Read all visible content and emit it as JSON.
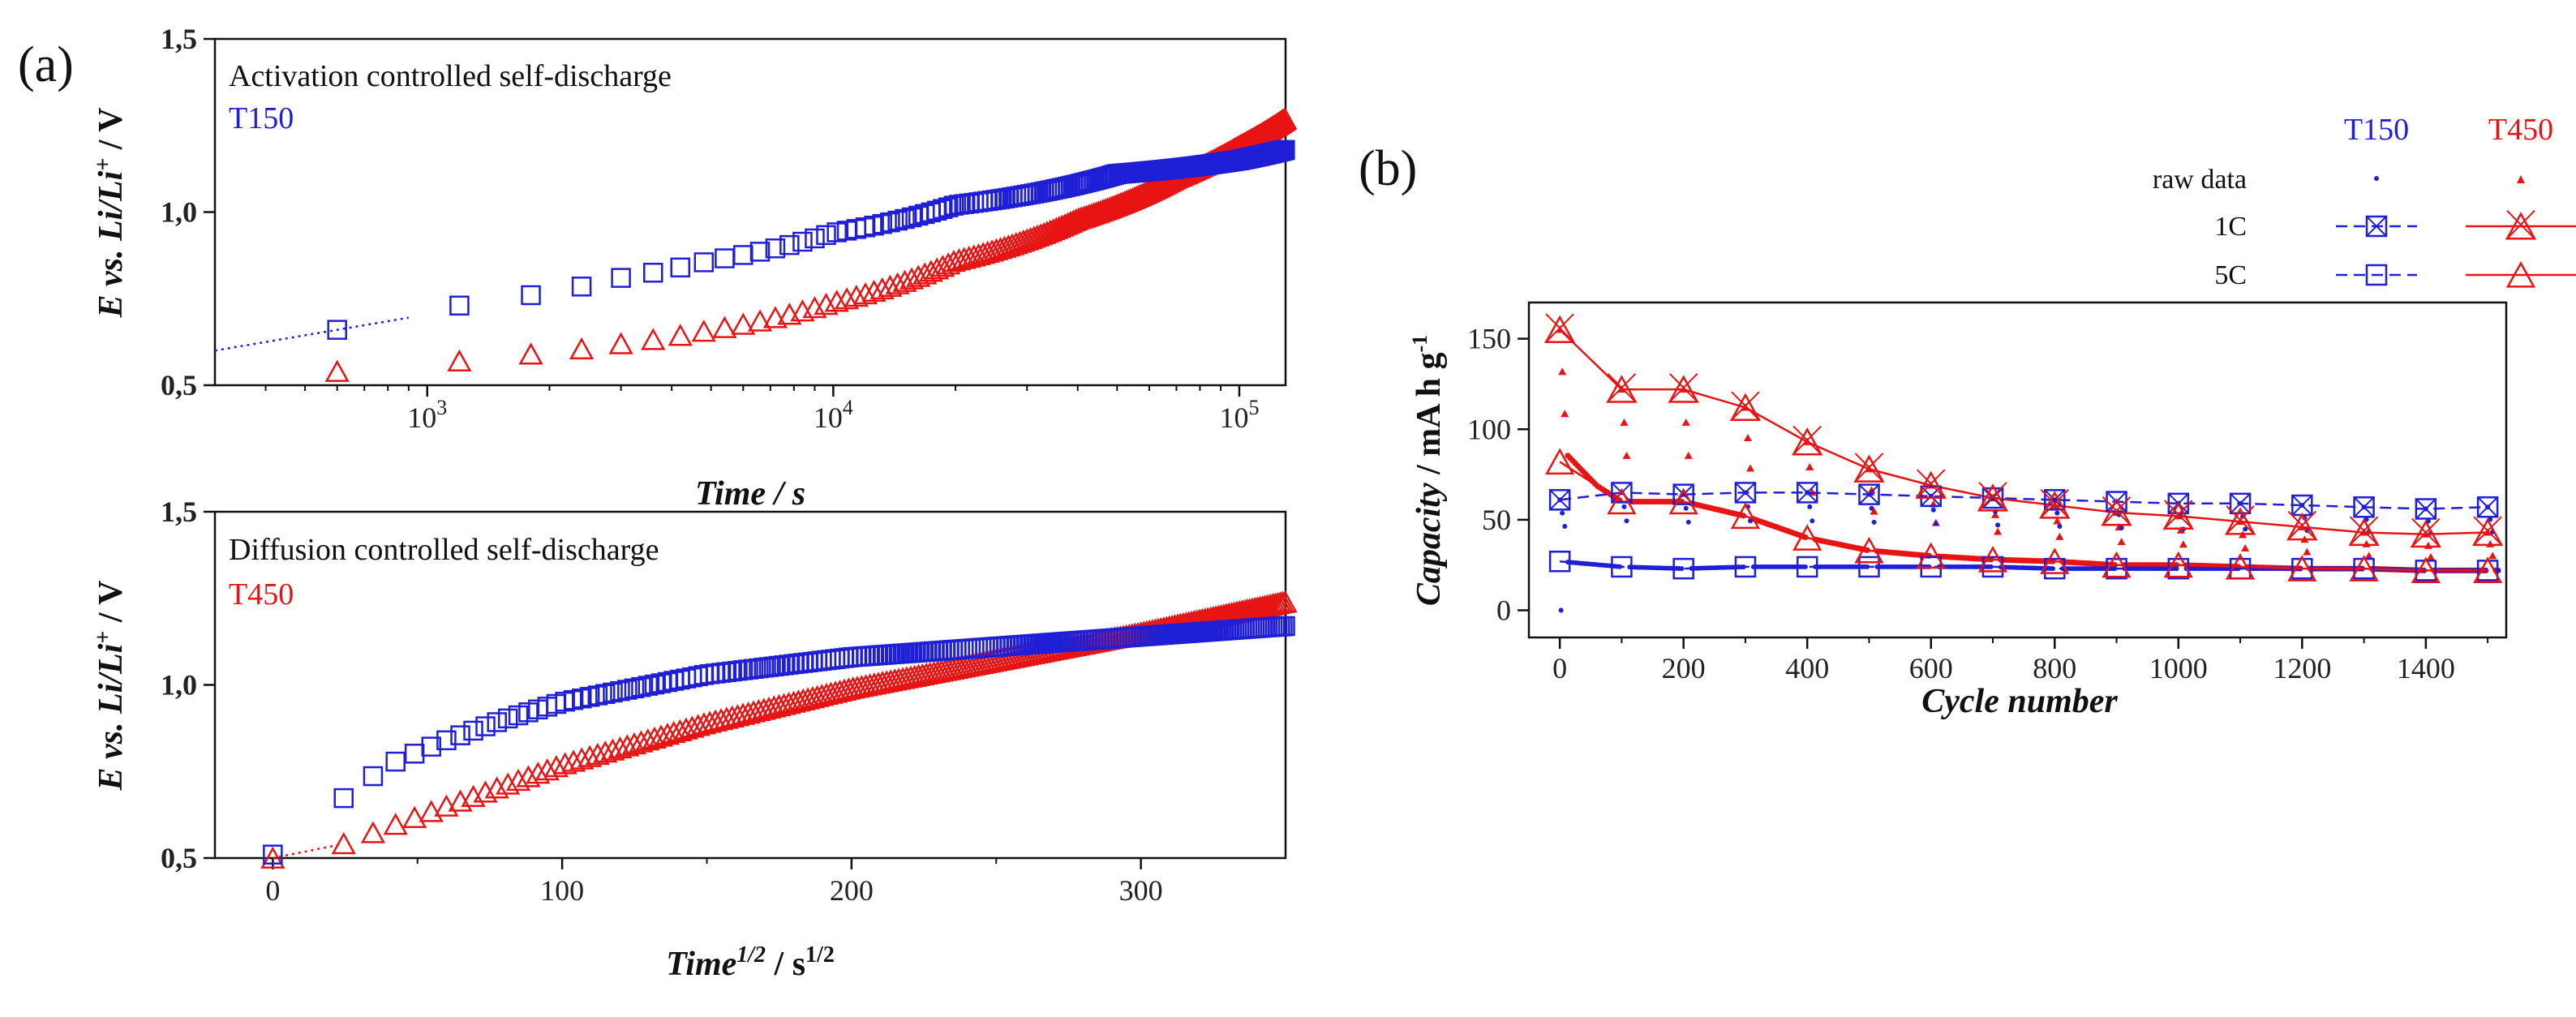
{
  "colors": {
    "T150": "#1f1fd6",
    "T450": "#e81414",
    "axis": "#111111"
  },
  "panel_labels": {
    "a": "(a)",
    "b": "(b)"
  },
  "chart_data": [
    {
      "type": "scatter",
      "panel": "(a) top",
      "annotation_title": "Activation controlled self-discharge",
      "annotation_series": "T150",
      "xlabel": "Time / s",
      "ylabel": "E vs. Li/Li+ / V",
      "xscale": "log",
      "xlim": [
        300,
        130000
      ],
      "ylim": [
        0.5,
        1.5
      ],
      "x_ticks": [
        1000,
        10000,
        100000
      ],
      "x_tick_labels": [
        {
          "base": "10",
          "exp": "3"
        },
        {
          "base": "10",
          "exp": "4"
        },
        {
          "base": "10",
          "exp": "5"
        }
      ],
      "y_ticks": [
        0.5,
        1.0,
        1.5
      ],
      "y_tick_labels": [
        "0,5",
        "1,0",
        "1,5"
      ],
      "series": [
        {
          "name": "T150",
          "marker": "square",
          "color": "#1f1fd6",
          "points_sampled": [
            [
              600,
              0.66
            ],
            [
              1200,
              0.73
            ],
            [
              1800,
              0.76
            ],
            [
              3000,
              0.81
            ],
            [
              5000,
              0.86
            ],
            [
              10000,
              0.94
            ],
            [
              20000,
              1.02
            ],
            [
              50000,
              1.11
            ],
            [
              100000,
              1.15
            ],
            [
              130000,
              1.18
            ]
          ]
        },
        {
          "name": "T450",
          "marker": "triangle",
          "color": "#e81414",
          "points_sampled": [
            [
              600,
              0.54
            ],
            [
              1200,
              0.57
            ],
            [
              1800,
              0.59
            ],
            [
              3000,
              0.62
            ],
            [
              5000,
              0.66
            ],
            [
              10000,
              0.74
            ],
            [
              20000,
              0.86
            ],
            [
              40000,
              0.98
            ],
            [
              70000,
              1.1
            ],
            [
              100000,
              1.19
            ],
            [
              130000,
              1.27
            ]
          ]
        }
      ]
    },
    {
      "type": "scatter",
      "panel": "(a) bottom",
      "annotation_title": "Diffusion controlled self-discharge",
      "annotation_series": "T450",
      "xlabel": "Time^1/2 / s^1/2",
      "ylabel": "E vs. Li/Li+ / V",
      "xlim": [
        -20,
        350
      ],
      "ylim": [
        0.5,
        1.5
      ],
      "x_ticks": [
        0,
        100,
        200,
        300
      ],
      "y_ticks": [
        0.5,
        1.0,
        1.5
      ],
      "y_tick_labels": [
        "0,5",
        "1,0",
        "1,5"
      ],
      "series": [
        {
          "name": "T150",
          "marker": "square",
          "color": "#1f1fd6",
          "points_sampled": [
            [
              0,
              0.51
            ],
            [
              24,
              0.67
            ],
            [
              40,
              0.77
            ],
            [
              60,
              0.84
            ],
            [
              80,
              0.9
            ],
            [
              100,
              0.95
            ],
            [
              150,
              1.03
            ],
            [
              200,
              1.08
            ],
            [
              250,
              1.11
            ],
            [
              300,
              1.14
            ],
            [
              350,
              1.17
            ]
          ]
        },
        {
          "name": "T450",
          "marker": "triangle",
          "color": "#e81414",
          "points_sampled": [
            [
              0,
              0.5
            ],
            [
              24,
              0.54
            ],
            [
              40,
              0.59
            ],
            [
              60,
              0.65
            ],
            [
              80,
              0.71
            ],
            [
              100,
              0.77
            ],
            [
              150,
              0.89
            ],
            [
              200,
              0.99
            ],
            [
              250,
              1.07
            ],
            [
              300,
              1.15
            ],
            [
              350,
              1.24
            ]
          ]
        }
      ]
    },
    {
      "type": "scatter",
      "panel": "(b)",
      "xlabel": "Cycle number",
      "ylabel": "Capacity / mA h g-1",
      "xlim": [
        -50,
        1530
      ],
      "ylim": [
        -15,
        170
      ],
      "x_ticks": [
        0,
        200,
        400,
        600,
        800,
        1000,
        1200,
        1400
      ],
      "y_ticks": [
        0,
        50,
        100,
        150
      ],
      "legend": {
        "placement": "top-right",
        "column_headers": [
          "T150",
          "T450"
        ],
        "row_labels": [
          "raw data",
          "1C",
          "5C"
        ]
      },
      "series": [
        {
          "name": "T150 1C",
          "marker": "crossed-square",
          "color": "#1f1fd6",
          "x": [
            0,
            100,
            200,
            300,
            400,
            500,
            600,
            700,
            800,
            900,
            1000,
            1100,
            1200,
            1300,
            1400,
            1500
          ],
          "values": [
            61,
            65,
            64,
            65,
            65,
            64,
            63,
            62,
            61,
            60,
            59,
            59,
            58,
            57,
            56,
            57
          ]
        },
        {
          "name": "T150 5C",
          "marker": "square",
          "color": "#1f1fd6",
          "x": [
            0,
            100,
            200,
            300,
            400,
            500,
            600,
            700,
            800,
            900,
            1000,
            1100,
            1200,
            1300,
            1400,
            1500
          ],
          "values": [
            27,
            24,
            23,
            24,
            24,
            24,
            24,
            24,
            23,
            23,
            23,
            23,
            23,
            23,
            22,
            22
          ]
        },
        {
          "name": "T450 1C",
          "marker": "crossed-triangle",
          "color": "#e81414",
          "x": [
            0,
            100,
            200,
            300,
            400,
            500,
            600,
            700,
            800,
            900,
            1000,
            1100,
            1200,
            1300,
            1400,
            1500
          ],
          "values": [
            155,
            122,
            122,
            112,
            93,
            78,
            69,
            62,
            58,
            54,
            52,
            49,
            46,
            43,
            42,
            43
          ]
        },
        {
          "name": "T450 5C",
          "marker": "triangle",
          "color": "#e81414",
          "x": [
            0,
            100,
            200,
            300,
            400,
            500,
            600,
            700,
            800,
            900,
            1000,
            1100,
            1200,
            1300,
            1400,
            1500
          ],
          "values": [
            82,
            60,
            60,
            52,
            40,
            33,
            30,
            28,
            27,
            25,
            25,
            24,
            23,
            23,
            22,
            22
          ]
        }
      ]
    }
  ]
}
